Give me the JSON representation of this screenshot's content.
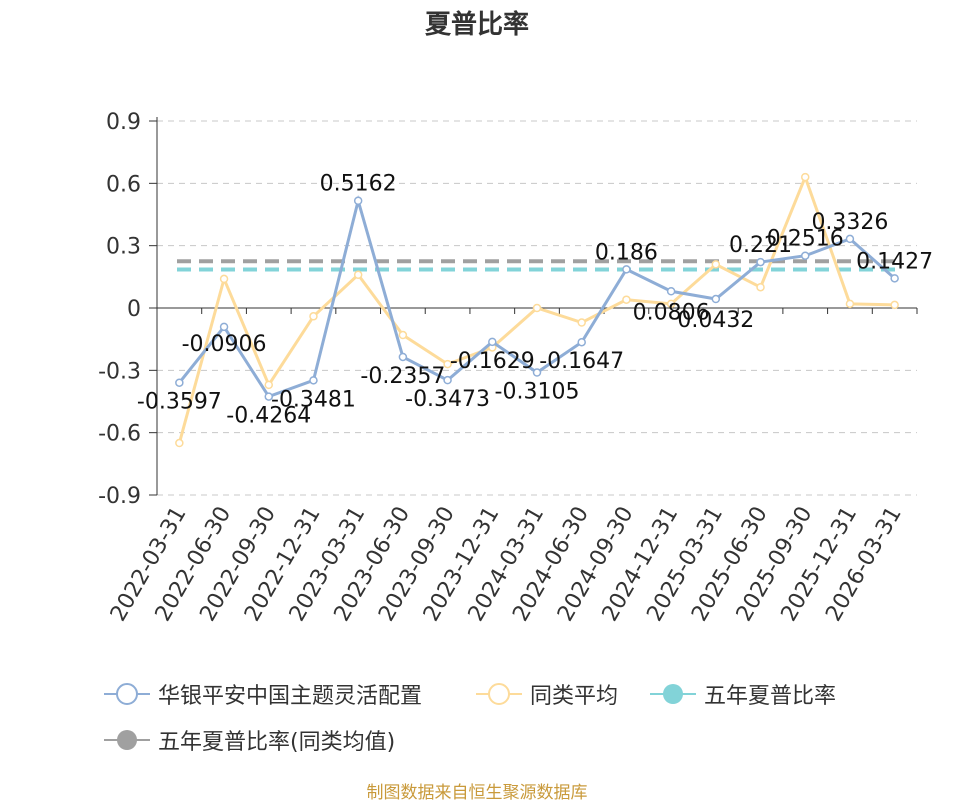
{
  "chart_data": {
    "type": "line",
    "title": "夏普比率",
    "categories": [
      "2022-03-31",
      "2022-06-30",
      "2022-09-30",
      "2022-12-31",
      "2023-03-31",
      "2023-06-30",
      "2023-09-30",
      "2023-12-31",
      "2024-03-31",
      "2024-06-30",
      "2024-09-30",
      "2024-12-31",
      "2025-03-31",
      "2025-06-30",
      "2025-09-30",
      "2025-12-31",
      "2026-03-31"
    ],
    "ylim": [
      -0.9,
      0.9
    ],
    "yticks": [
      "0.9",
      "0.6",
      "0.3",
      "0",
      "-0.3",
      "-0.6",
      "-0.9"
    ],
    "grid": true,
    "legend_position": "bottom",
    "series": [
      {
        "name": "华银平安中国主题灵活配置",
        "color": "#8eadd6",
        "values": [
          -0.3597,
          -0.0906,
          -0.4264,
          -0.3481,
          0.5162,
          -0.2357,
          -0.3473,
          -0.1629,
          -0.3105,
          -0.1647,
          0.186,
          0.0806,
          0.0432,
          0.221,
          0.2516,
          0.3326,
          0.1427
        ],
        "labels": [
          "-0.3597",
          "-0.0906",
          "-0.4264",
          "-0.3481",
          "0.5162",
          "-0.2357",
          "-0.3473",
          "-0.1629",
          "-0.3105",
          "-0.1647",
          "0.186",
          "0.0806",
          "0.0432",
          "0.221",
          "0.2516",
          "0.3326",
          "0.1427"
        ]
      },
      {
        "name": "同类平均",
        "color": "#fddb9a",
        "values": [
          -0.65,
          0.14,
          -0.37,
          -0.04,
          0.16,
          -0.13,
          -0.27,
          -0.19,
          0.0,
          -0.07,
          0.04,
          0.02,
          0.21,
          0.1,
          0.63,
          0.02,
          0.015
        ]
      },
      {
        "name": "五年夏普比率",
        "color": "#82d3d8",
        "dashed": true,
        "value": 0.185
      },
      {
        "name": "五年夏普比率(同类均值)",
        "color": "#a0a0a0",
        "dashed": true,
        "value": 0.225
      }
    ]
  },
  "source": "制图数据来自恒生聚源数据库"
}
